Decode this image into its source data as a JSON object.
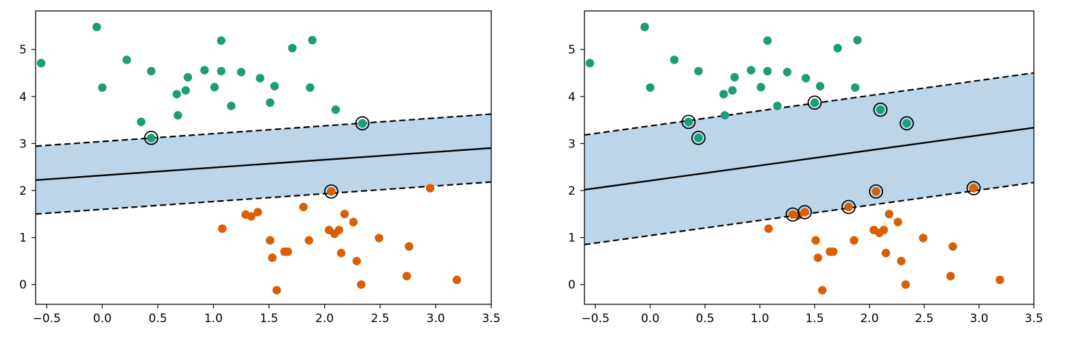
{
  "colors": {
    "class_a": "#1b9e77",
    "class_b": "#d95f02",
    "margin_fill": "#bcd5e8",
    "line": "#000000"
  },
  "chart_data": [
    {
      "type": "scatter",
      "title": "",
      "xlabel": "",
      "ylabel": "",
      "xlim": [
        -0.6,
        3.5
      ],
      "ylim": [
        -0.42,
        5.82
      ],
      "grid": false,
      "xticks": [
        "−0.5",
        "0.0",
        "0.5",
        "1.0",
        "1.5",
        "2.0",
        "2.5",
        "3.0",
        "3.5"
      ],
      "yticks": [
        "0",
        "1",
        "2",
        "3",
        "4",
        "5"
      ],
      "decision_line": {
        "slope": 0.1663,
        "intercept": 2.322
      },
      "margin_lines": [
        {
          "slope": 0.1663,
          "intercept": 3.044
        },
        {
          "slope": 0.1663,
          "intercept": 1.6
        }
      ],
      "series": [
        {
          "x": [
            -0.55,
            -0.05,
            0.0,
            0.22,
            0.35,
            0.44,
            0.44,
            0.67,
            0.68,
            0.75,
            0.77,
            0.92,
            1.01,
            1.07,
            1.07,
            1.16,
            1.25,
            1.42,
            1.51,
            1.55,
            1.71,
            1.87,
            1.89,
            2.1,
            2.34
          ],
          "y": [
            4.71,
            5.48,
            4.19,
            4.78,
            3.46,
            4.54,
            3.12,
            4.05,
            3.6,
            4.13,
            4.41,
            4.56,
            4.2,
            5.19,
            4.54,
            3.8,
            4.52,
            4.39,
            3.87,
            4.22,
            5.03,
            4.19,
            5.2,
            3.72,
            3.43
          ]
        },
        {
          "x": [
            1.08,
            1.29,
            1.34,
            1.4,
            1.51,
            1.53,
            1.57,
            1.64,
            1.67,
            1.81,
            1.86,
            2.04,
            2.06,
            2.09,
            2.13,
            2.15,
            2.18,
            2.26,
            2.29,
            2.33,
            2.49,
            2.74,
            2.76,
            2.95,
            3.19
          ],
          "y": [
            1.19,
            1.49,
            1.45,
            1.54,
            0.94,
            0.57,
            -0.12,
            0.7,
            0.7,
            1.65,
            0.94,
            1.16,
            1.98,
            1.08,
            1.16,
            0.67,
            1.5,
            1.33,
            0.5,
            0.0,
            0.99,
            0.18,
            0.81,
            2.05,
            0.1
          ]
        }
      ],
      "support_vectors": [
        [
          0.44,
          3.12
        ],
        [
          2.34,
          3.43
        ],
        [
          2.06,
          1.98
        ]
      ]
    },
    {
      "type": "scatter",
      "title": "",
      "xlabel": "",
      "ylabel": "",
      "xlim": [
        -0.6,
        3.5
      ],
      "ylim": [
        -0.42,
        5.82
      ],
      "grid": false,
      "xticks": [
        "−0.5",
        "0.0",
        "0.5",
        "1.0",
        "1.5",
        "2.0",
        "2.5",
        "3.0",
        "3.5"
      ],
      "yticks": [
        "0",
        "1",
        "2",
        "3",
        "4",
        "5"
      ],
      "decision_line": {
        "slope": 0.3222,
        "intercept": 2.21
      },
      "margin_lines": [
        {
          "slope": 0.3222,
          "intercept": 3.375
        },
        {
          "slope": 0.3222,
          "intercept": 1.043
        }
      ],
      "series": [
        {
          "x": [
            -0.55,
            -0.05,
            0.0,
            0.22,
            0.35,
            0.44,
            0.44,
            0.67,
            0.68,
            0.75,
            0.77,
            0.92,
            1.01,
            1.07,
            1.07,
            1.16,
            1.25,
            1.42,
            1.5,
            1.55,
            1.71,
            1.87,
            1.89,
            2.1,
            2.34
          ],
          "y": [
            4.71,
            5.48,
            4.19,
            4.78,
            3.46,
            4.54,
            3.12,
            4.05,
            3.6,
            4.13,
            4.41,
            4.56,
            4.2,
            5.19,
            4.54,
            3.8,
            4.52,
            4.39,
            3.87,
            4.22,
            5.03,
            4.19,
            5.2,
            3.72,
            3.43
          ]
        },
        {
          "x": [
            1.08,
            1.3,
            1.35,
            1.41,
            1.51,
            1.53,
            1.57,
            1.64,
            1.67,
            1.81,
            1.86,
            2.04,
            2.06,
            2.09,
            2.13,
            2.15,
            2.18,
            2.26,
            2.29,
            2.33,
            2.49,
            2.74,
            2.76,
            2.95,
            3.19
          ],
          "y": [
            1.19,
            1.49,
            1.47,
            1.54,
            0.94,
            0.57,
            -0.12,
            0.7,
            0.7,
            1.65,
            0.94,
            1.16,
            1.98,
            1.1,
            1.16,
            0.67,
            1.5,
            1.33,
            0.5,
            0.0,
            0.99,
            0.18,
            0.81,
            2.05,
            0.1
          ]
        }
      ],
      "support_vectors": [
        [
          0.35,
          3.46
        ],
        [
          0.44,
          3.12
        ],
        [
          1.5,
          3.87
        ],
        [
          2.1,
          3.72
        ],
        [
          2.34,
          3.43
        ],
        [
          1.3,
          1.49
        ],
        [
          1.41,
          1.54
        ],
        [
          1.81,
          1.65
        ],
        [
          2.06,
          1.98
        ],
        [
          2.95,
          2.05
        ]
      ]
    }
  ]
}
